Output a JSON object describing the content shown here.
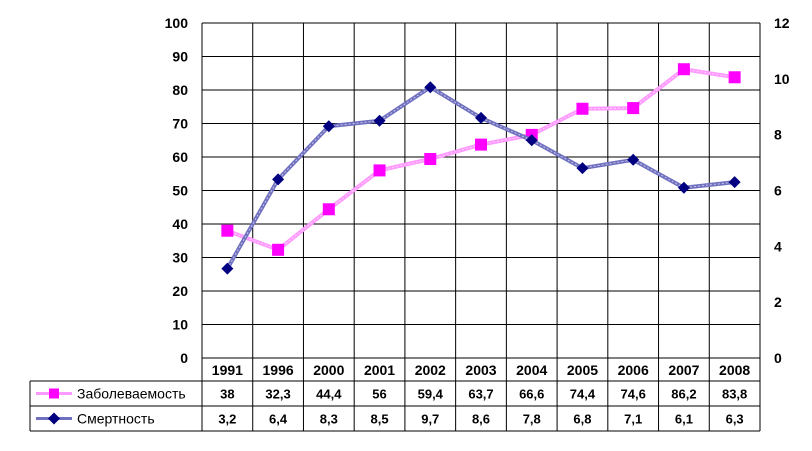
{
  "chart_data": {
    "type": "line",
    "categories": [
      "1991",
      "1996",
      "2000",
      "2001",
      "2002",
      "2003",
      "2004",
      "2005",
      "2006",
      "2007",
      "2008"
    ],
    "series": [
      {
        "name": "Заболеваемость",
        "axis": "left",
        "color": "#ff00ff",
        "line_color": "#ff99ff",
        "marker": "square",
        "values": [
          38,
          32.3,
          44.4,
          56,
          59.4,
          63.7,
          66.6,
          74.4,
          74.6,
          86.2,
          83.8
        ],
        "labels": [
          "38",
          "32,3",
          "44,4",
          "56",
          "59,4",
          "63,7",
          "66,6",
          "74,4",
          "74,6",
          "86,2",
          "83,8"
        ]
      },
      {
        "name": "Смертность",
        "axis": "right",
        "color": "#000080",
        "line_color": "#7070c0",
        "marker": "diamond",
        "values": [
          3.2,
          6.4,
          8.3,
          8.5,
          9.7,
          8.6,
          7.8,
          6.8,
          7.1,
          6.1,
          6.3
        ],
        "labels": [
          "3,2",
          "6,4",
          "8,3",
          "8,5",
          "9,7",
          "8,6",
          "7,8",
          "6,8",
          "7,1",
          "6,1",
          "6,3"
        ]
      }
    ],
    "y_left": {
      "min": 0,
      "max": 100,
      "ticks": [
        "0",
        "10",
        "20",
        "30",
        "40",
        "50",
        "60",
        "70",
        "80",
        "90",
        "100"
      ]
    },
    "y_right": {
      "min": 0,
      "max": 12,
      "ticks": [
        "0",
        "2",
        "4",
        "6",
        "8",
        "10",
        "12"
      ]
    },
    "grid": true,
    "legend": "data-table"
  }
}
